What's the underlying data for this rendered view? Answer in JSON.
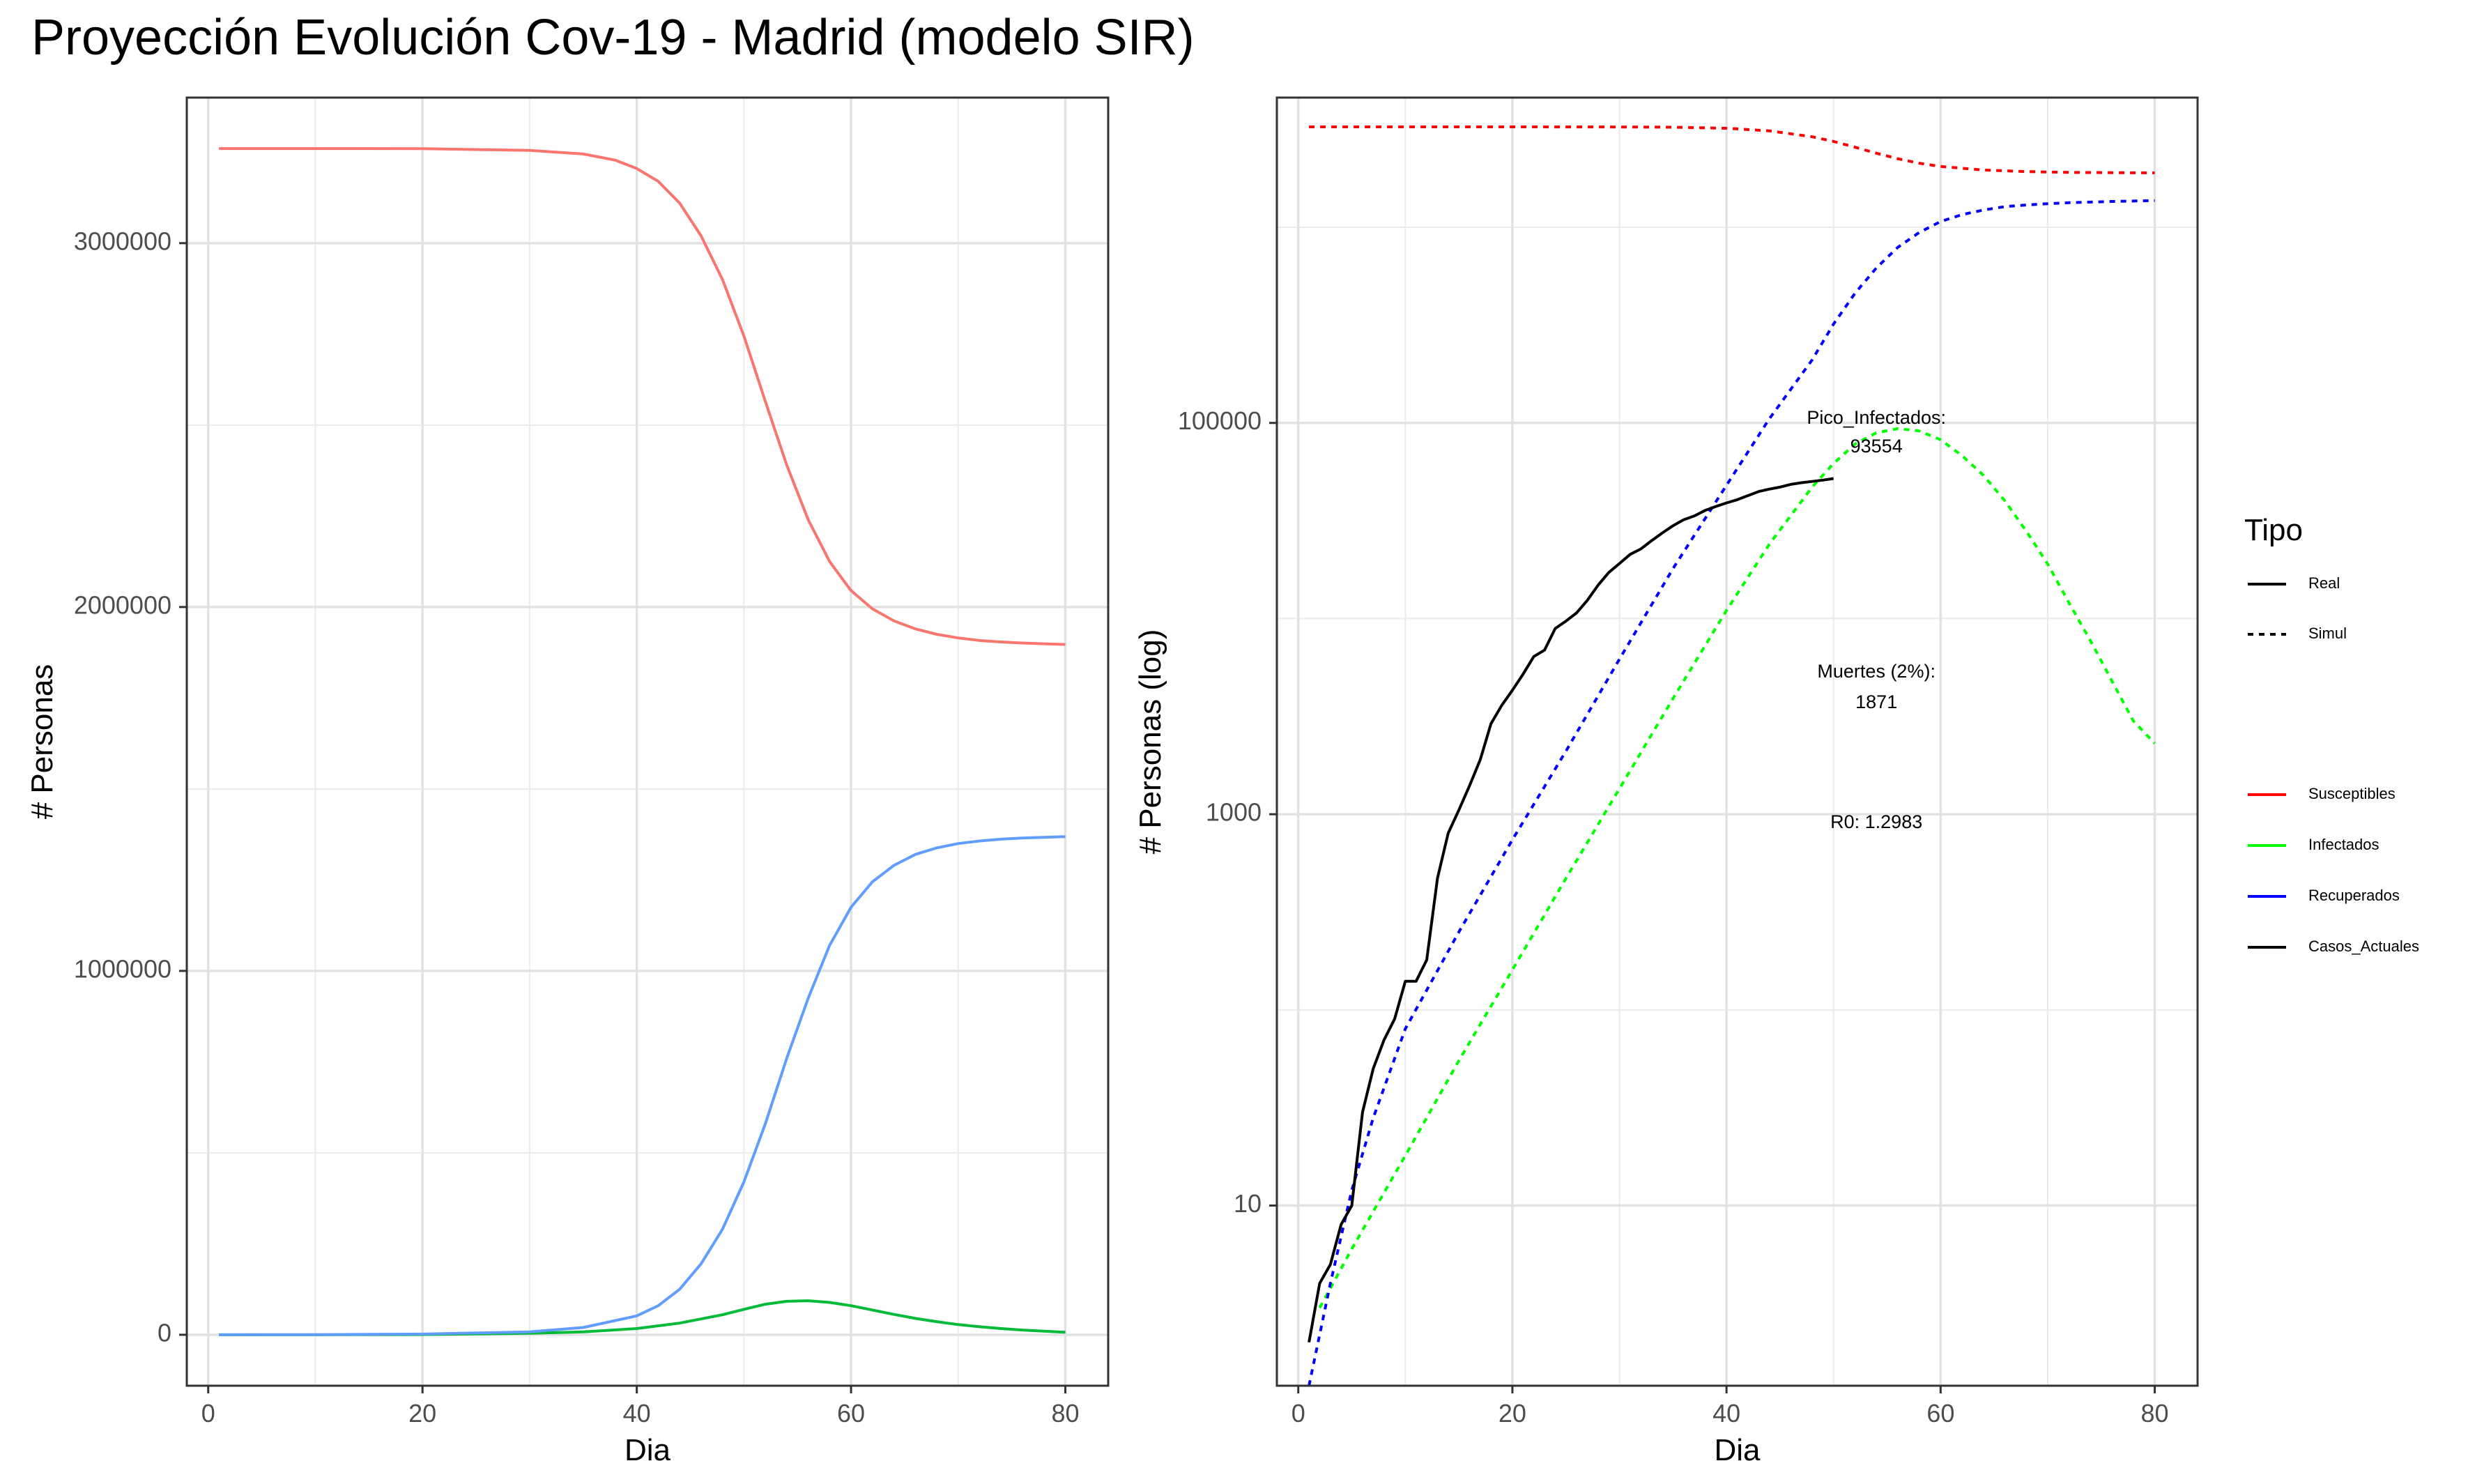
{
  "title": "Proyección Evolución Cov-19 - Madrid (modelo SIR)",
  "chart_data": [
    {
      "type": "line",
      "xlabel": "Dia",
      "ylabel": "# Personas",
      "xlim": [
        -2,
        84
      ],
      "ylim": [
        -140000,
        3400000
      ],
      "xticks": [
        0,
        20,
        40,
        60,
        80
      ],
      "xtick_labels": [
        "0",
        "20",
        "40",
        "60",
        "80"
      ],
      "yticks": [
        0,
        1000000,
        2000000,
        3000000
      ],
      "ytick_labels": [
        "0",
        "1000000",
        "2000000",
        "3000000"
      ],
      "grid": true,
      "series": [
        {
          "name": "Susceptibles",
          "color": "#F8766D",
          "x": [
            1,
            10,
            20,
            30,
            35,
            38,
            40,
            42,
            44,
            46,
            48,
            50,
            52,
            54,
            56,
            58,
            60,
            62,
            64,
            66,
            68,
            70,
            72,
            74,
            76,
            78,
            80
          ],
          "y": [
            3260000,
            3260000,
            3259500,
            3255000,
            3245000,
            3228000,
            3205000,
            3170000,
            3110000,
            3020000,
            2900000,
            2745000,
            2565000,
            2390000,
            2240000,
            2125000,
            2045000,
            1995000,
            1962000,
            1940000,
            1925000,
            1915000,
            1908000,
            1904000,
            1901000,
            1899000,
            1897000
          ]
        },
        {
          "name": "Infectados",
          "color": "#00BA38",
          "x": [
            1,
            10,
            20,
            30,
            35,
            40,
            44,
            48,
            50,
            52,
            54,
            56,
            58,
            60,
            62,
            64,
            66,
            68,
            70,
            72,
            74,
            76,
            78,
            80
          ],
          "y": [
            0,
            100,
            600,
            4000,
            8000,
            17000,
            32000,
            55000,
            70000,
            84000,
            92000,
            93554,
            89000,
            80000,
            68000,
            56000,
            45000,
            36000,
            28000,
            22000,
            17000,
            13000,
            10000,
            7000
          ]
        },
        {
          "name": "Recuperados",
          "color": "#619CFF",
          "x": [
            1,
            10,
            20,
            30,
            35,
            40,
            42,
            44,
            46,
            48,
            50,
            52,
            54,
            56,
            58,
            60,
            62,
            64,
            66,
            68,
            70,
            72,
            74,
            76,
            78,
            80
          ],
          "y": [
            0,
            500,
            2000,
            8000,
            20000,
            52000,
            80000,
            125000,
            195000,
            290000,
            420000,
            580000,
            760000,
            925000,
            1070000,
            1175000,
            1245000,
            1290000,
            1320000,
            1338000,
            1350000,
            1357000,
            1362000,
            1365000,
            1367000,
            1369000
          ]
        }
      ]
    },
    {
      "type": "line",
      "xlabel": "Dia",
      "ylabel": "# Personas (log)",
      "scale_y": "log10",
      "xlim": [
        -2,
        84
      ],
      "ylim": [
        1.2,
        4600000
      ],
      "xticks": [
        0,
        20,
        40,
        60,
        80
      ],
      "xtick_labels": [
        "0",
        "20",
        "40",
        "60",
        "80"
      ],
      "yticks": [
        10,
        1000,
        100000
      ],
      "ytick_labels": [
        "10",
        "1000",
        "100000"
      ],
      "grid": true,
      "series": [
        {
          "name": "Susceptibles",
          "style": "Simul",
          "color": "#FF0000",
          "x": [
            1,
            10,
            20,
            30,
            35,
            40,
            44,
            48,
            50,
            52,
            54,
            56,
            58,
            60,
            64,
            68,
            72,
            76,
            80
          ],
          "y": [
            3260000,
            3260000,
            3259500,
            3255000,
            3245000,
            3205000,
            3110000,
            2900000,
            2745000,
            2565000,
            2390000,
            2240000,
            2125000,
            2045000,
            1962000,
            1925000,
            1908000,
            1901000,
            1897000
          ]
        },
        {
          "name": "Infectados",
          "style": "Simul",
          "color": "#00FF00",
          "x": [
            2,
            5,
            10,
            15,
            20,
            25,
            30,
            35,
            40,
            44,
            48,
            50,
            52,
            54,
            56,
            58,
            60,
            62,
            64,
            66,
            68,
            70,
            72,
            74,
            76,
            78,
            80
          ],
          "y": [
            3,
            6,
            18,
            55,
            160,
            470,
            1350,
            3900,
            11000,
            24000,
            47000,
            62000,
            78000,
            89000,
            93554,
            91000,
            82000,
            68000,
            54000,
            40000,
            28000,
            19000,
            12000,
            7700,
            4800,
            3000,
            2300
          ]
        },
        {
          "name": "Recuperados",
          "style": "Simul",
          "color": "#0000FF",
          "x": [
            1,
            3,
            5,
            7,
            10,
            15,
            20,
            25,
            30,
            35,
            40,
            44,
            48,
            50,
            52,
            54,
            56,
            58,
            60,
            62,
            64,
            66,
            68,
            70,
            72,
            74,
            76,
            78,
            80
          ],
          "y": [
            1.2,
            4,
            12,
            28,
            80,
            250,
            740,
            2100,
            6200,
            18000,
            48000,
            105000,
            210000,
            320000,
            460000,
            620000,
            790000,
            940000,
            1070000,
            1160000,
            1225000,
            1275000,
            1300000,
            1320000,
            1335000,
            1345000,
            1355000,
            1362000,
            1369000
          ]
        },
        {
          "name": "Casos_Actuales",
          "style": "Real",
          "color": "#000000",
          "x": [
            1,
            2,
            3,
            4,
            5,
            6,
            7,
            8,
            9,
            10,
            11,
            12,
            13,
            14,
            15,
            16,
            17,
            18,
            19,
            20,
            21,
            22,
            23,
            24,
            25,
            26,
            27,
            28,
            29,
            30,
            31,
            32,
            33,
            34,
            35,
            36,
            37,
            38,
            39,
            40,
            41,
            42,
            43,
            44,
            45,
            46,
            47,
            48,
            49,
            50
          ],
          "y": [
            2,
            4,
            5,
            8,
            10,
            30,
            50,
            70,
            90,
            140,
            140,
            180,
            470,
            800,
            1050,
            1400,
            1900,
            2900,
            3600,
            4300,
            5200,
            6400,
            6900,
            8900,
            9700,
            10700,
            12400,
            14800,
            17200,
            19100,
            21300,
            22700,
            25000,
            27400,
            29800,
            32000,
            33500,
            35700,
            37400,
            39000,
            40500,
            42500,
            44600,
            45900,
            47000,
            48500,
            49500,
            50200,
            51000,
            52000
          ]
        }
      ],
      "annotations": [
        {
          "text": "Pico_Infectados:",
          "x": 54,
          "y": 105000
        },
        {
          "text": "93554",
          "x": 54,
          "y": 75000
        },
        {
          "text": "Muertes (2%):",
          "x": 54,
          "y": 5300
        },
        {
          "text": "1871",
          "x": 54,
          "y": 3700
        },
        {
          "text": "R0: 1.2983",
          "x": 54,
          "y": 900
        }
      ]
    }
  ],
  "legend": {
    "title": "Tipo",
    "placement": "right",
    "linetype_items": [
      {
        "label": "Real",
        "dash": "solid",
        "color": "#000000"
      },
      {
        "label": "Simul",
        "dash": "dotted",
        "color": "#000000"
      }
    ],
    "color_items": [
      {
        "label": "Susceptibles",
        "color": "#FF0000"
      },
      {
        "label": "Infectados",
        "color": "#00FF00"
      },
      {
        "label": "Recuperados",
        "color": "#0000FF"
      },
      {
        "label": "Casos_Actuales",
        "color": "#000000"
      }
    ]
  }
}
